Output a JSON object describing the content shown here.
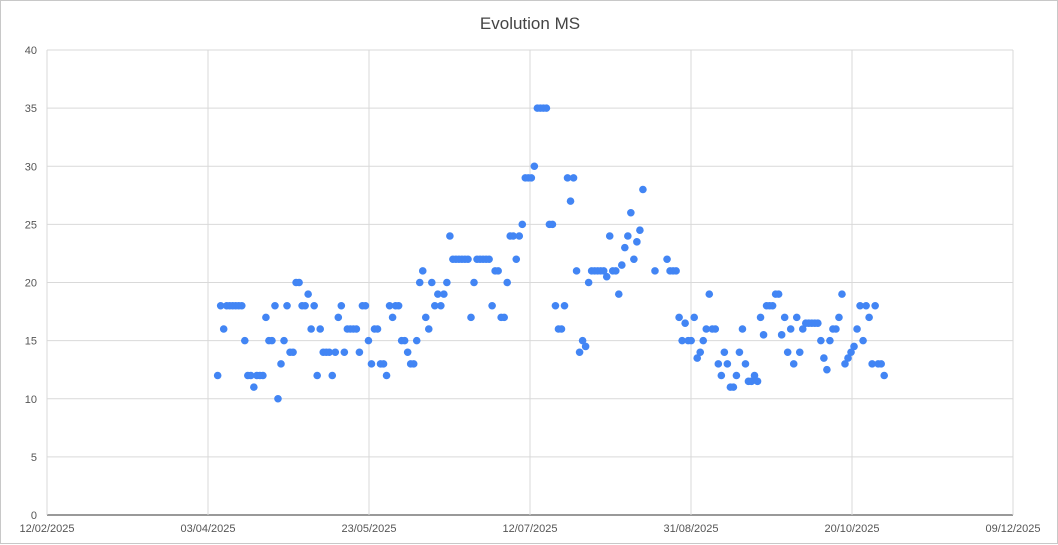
{
  "chart_data": {
    "type": "scatter",
    "title": "Evolution MS",
    "xlabel": "",
    "ylabel": "",
    "xlim": [
      "2025-02-12",
      "2025-12-09"
    ],
    "ylim": [
      0,
      40
    ],
    "grid": true,
    "legend": "none",
    "color": "#4285f4",
    "x_tick_labels": [
      "12/02/2025",
      "03/04/2025",
      "23/05/2025",
      "12/07/2025",
      "31/08/2025",
      "20/10/2025",
      "09/12/2025"
    ],
    "x_tick_dates": [
      "2025-02-12",
      "2025-04-03",
      "2025-05-23",
      "2025-07-12",
      "2025-08-31",
      "2025-10-20",
      "2025-12-09"
    ],
    "y_ticks": [
      0,
      5,
      10,
      15,
      20,
      25,
      30,
      35,
      40
    ],
    "series_note": "evenly spaced readings between first and last date",
    "x_first": "2025-04-06",
    "x_last": "2025-10-30",
    "values": [
      12,
      18,
      16,
      18,
      18,
      18,
      18,
      18,
      18,
      15,
      12,
      12,
      11,
      12,
      12,
      12,
      17,
      15,
      15,
      18,
      10,
      13,
      15,
      18,
      14,
      14,
      20,
      20,
      18,
      18,
      19,
      16,
      18,
      12,
      16,
      14,
      14,
      14,
      12,
      14,
      17,
      18,
      14,
      16,
      16,
      16,
      16,
      14,
      18,
      18,
      15,
      13,
      16,
      16,
      13,
      13,
      12,
      18,
      17,
      18,
      18,
      15,
      15,
      14,
      13,
      13,
      15,
      20,
      21,
      17,
      16,
      20,
      18,
      19,
      18,
      19,
      20,
      24,
      22,
      22,
      22,
      22,
      22,
      22,
      17,
      20,
      22,
      22,
      22,
      22,
      22,
      18,
      21,
      21,
      17,
      17,
      20,
      24,
      24,
      22,
      24,
      25,
      29,
      29,
      29,
      30,
      35,
      35,
      35,
      35,
      25,
      25,
      18,
      16,
      16,
      18,
      29,
      27,
      29,
      21,
      14,
      15,
      14.5,
      20,
      21,
      21,
      21,
      21,
      21,
      20.5,
      24,
      21,
      21,
      19,
      21.5,
      23,
      24,
      26,
      22,
      23.5,
      24.5,
      28,
      null,
      null,
      null,
      21,
      null,
      null,
      null,
      22,
      21,
      21,
      21,
      17,
      15,
      16.5,
      15,
      15,
      17,
      13.5,
      14,
      15,
      16,
      19,
      16,
      16,
      13,
      12,
      14,
      13,
      11,
      11,
      12,
      14,
      16,
      13,
      11.5,
      11.5,
      12,
      11.5,
      17,
      15.5,
      18,
      18,
      18,
      19,
      19,
      15.5,
      17,
      14,
      16,
      13,
      17,
      14,
      16,
      16.5,
      16.5,
      16.5,
      16.5,
      16.5,
      15,
      13.5,
      12.5,
      15,
      16,
      16,
      17,
      19,
      13,
      13.5,
      14,
      14.5,
      16,
      18,
      15,
      18,
      17,
      13,
      18,
      13,
      13,
      12
    ]
  }
}
